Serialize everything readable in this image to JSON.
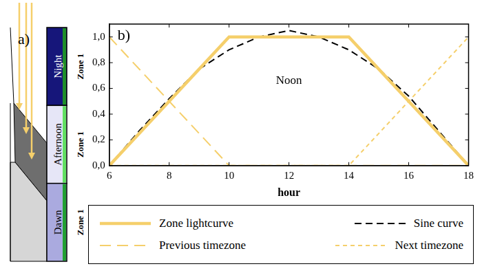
{
  "chart_data": {
    "type": "line",
    "panel_label": "b)",
    "annotation": "Noon",
    "x_label": "hour",
    "xlim": [
      6,
      18
    ],
    "xticks": [
      6,
      8,
      10,
      12,
      14,
      16,
      18
    ],
    "ylim": [
      0,
      1.1
    ],
    "yticks": [
      {
        "value": 0,
        "label": "0,0"
      },
      {
        "value": 0.2,
        "label": "0,2"
      },
      {
        "value": 0.4,
        "label": "0,4"
      },
      {
        "value": 0.6,
        "label": "0,6"
      },
      {
        "value": 0.8,
        "label": "0,8"
      },
      {
        "value": 1,
        "label": "1,0"
      }
    ],
    "grid": false,
    "legend": "bottom",
    "series": [
      {
        "name": "Zone lightcurve",
        "color": "#f5cf6b",
        "line_style": "solid",
        "x": [
          6,
          10,
          14,
          18
        ],
        "values": [
          0,
          1,
          1,
          0
        ]
      },
      {
        "name": "Sine curve",
        "color": "#000000",
        "line_style": "dashed",
        "x": [
          6,
          7,
          8,
          9,
          10,
          11,
          12,
          13,
          14,
          15,
          16,
          17,
          18
        ],
        "values": [
          0,
          0.27,
          0.52,
          0.75,
          0.9,
          1.0,
          1.05,
          1.0,
          0.9,
          0.75,
          0.54,
          0.27,
          0
        ]
      },
      {
        "name": "Previous timezone",
        "color": "#f5cf6b",
        "line_style": "long-dashed",
        "x": [
          6,
          10,
          18
        ],
        "values": [
          1,
          0,
          0
        ]
      },
      {
        "name": "Next timezone",
        "color": "#f5cf6b",
        "line_style": "short-dashed",
        "x": [
          6,
          14,
          18
        ],
        "values": [
          0,
          0,
          1
        ]
      }
    ]
  },
  "diagram": {
    "panel_label": "a)",
    "bands": [
      {
        "label": "Night",
        "zone": "Zone 1"
      },
      {
        "label": "Afternoon",
        "zone": "Zone 1"
      },
      {
        "label": "Dawn",
        "zone": "Zone 1"
      }
    ]
  }
}
